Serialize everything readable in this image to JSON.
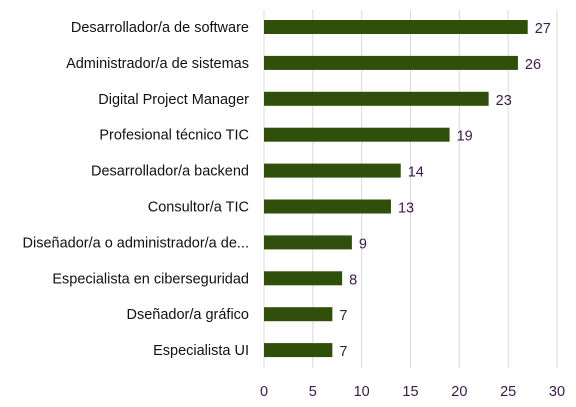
{
  "chart_data": {
    "type": "bar",
    "orientation": "horizontal",
    "categories": [
      "Desarrollador/a de software",
      "Administrador/a de sistemas",
      "Digital Project Manager",
      "Profesional técnico TIC",
      "Desarrollador/a backend",
      "Consultor/a TIC",
      "Diseñador/a o administrador/a de...",
      "Especialista en ciberseguridad",
      "Dseñador/a gráfico",
      "Especialista UI"
    ],
    "values": [
      27,
      26,
      23,
      19,
      14,
      13,
      9,
      8,
      7,
      7
    ],
    "title": "",
    "xlabel": "",
    "ylabel": "",
    "xlim": [
      0,
      30
    ],
    "xticks": [
      0,
      5,
      10,
      15,
      20,
      25,
      30
    ],
    "grid": true,
    "legend": "none",
    "colors": {
      "bar": "#2f4f0a",
      "grid": "#d9d9d9",
      "value_text": "#3b1a4a",
      "tick_text": "#3b1a4a",
      "category_text": "#111111"
    }
  }
}
